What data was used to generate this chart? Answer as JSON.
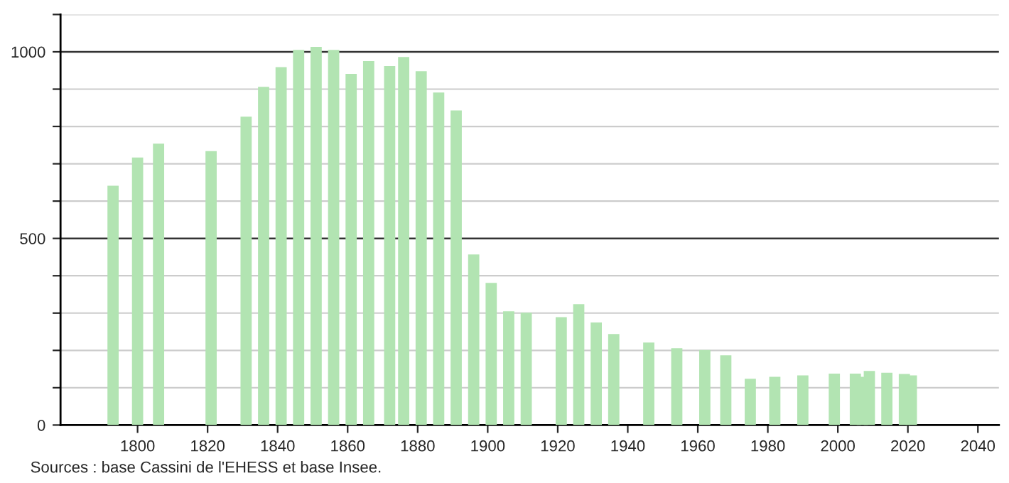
{
  "chart_data": {
    "type": "bar",
    "x": [
      1793,
      1800,
      1806,
      1821,
      1831,
      1836,
      1841,
      1846,
      1851,
      1856,
      1861,
      1866,
      1872,
      1876,
      1881,
      1886,
      1891,
      1896,
      1901,
      1906,
      1911,
      1921,
      1926,
      1931,
      1936,
      1946,
      1954,
      1962,
      1968,
      1975,
      1982,
      1990,
      1999,
      2005,
      2007,
      2009,
      2014,
      2019,
      2021
    ],
    "series": [
      {
        "color": "#b2e4b2",
        "values": [
          641,
          717,
          754,
          734,
          826,
          906,
          959,
          1005,
          1013,
          1005,
          941,
          975,
          962,
          986,
          948,
          891,
          843,
          457,
          381,
          305,
          301,
          289,
          324,
          275,
          244,
          221,
          206,
          201,
          187,
          124,
          129,
          133,
          138,
          138,
          129,
          145,
          140,
          137,
          133
        ]
      }
    ],
    "xlim": [
      1778,
      2046
    ],
    "xticks": [
      1800,
      1820,
      1840,
      1860,
      1880,
      1900,
      1920,
      1940,
      1960,
      1980,
      2000,
      2020,
      2040
    ],
    "ylim": [
      0,
      1100
    ],
    "yticks": [
      0,
      {
        "value": 100,
        "label": null
      },
      {
        "value": 200,
        "label": null
      },
      {
        "value": 300,
        "label": null
      },
      {
        "value": 400,
        "label": null
      },
      500,
      {
        "value": 600,
        "label": null
      },
      {
        "value": 700,
        "label": null
      },
      {
        "value": 800,
        "label": null
      },
      {
        "value": 900,
        "label": null
      },
      1000,
      {
        "value": 1100,
        "label": null
      }
    ],
    "grid": "y",
    "annotations": [
      "Sources : base Cassini de l'EHESS et base Insee."
    ]
  }
}
